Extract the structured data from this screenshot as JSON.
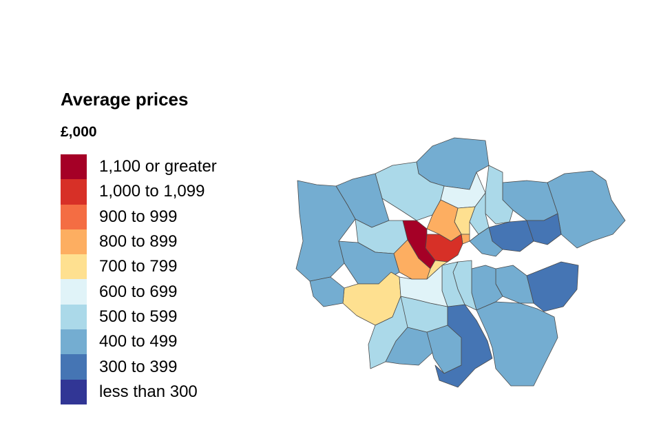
{
  "legend": {
    "title": "Average prices",
    "subtitle": "£,000",
    "items": [
      {
        "label": "1,100 or greater",
        "color": "#a50026"
      },
      {
        "label": "1,000 to 1,099",
        "color": "#d73027"
      },
      {
        "label": "900 to 999",
        "color": "#f46d43"
      },
      {
        "label": "800 to 899",
        "color": "#fdae61"
      },
      {
        "label": "700 to 799",
        "color": "#fee090"
      },
      {
        "label": "600 to 699",
        "color": "#e0f3f8"
      },
      {
        "label": "500 to 599",
        "color": "#abd9e9"
      },
      {
        "label": "400 to 499",
        "color": "#74add1"
      },
      {
        "label": "300 to 399",
        "color": "#4575b4"
      },
      {
        "label": "less than 300",
        "color": "#313695"
      }
    ]
  },
  "map": {
    "region": "London boroughs"
  }
}
